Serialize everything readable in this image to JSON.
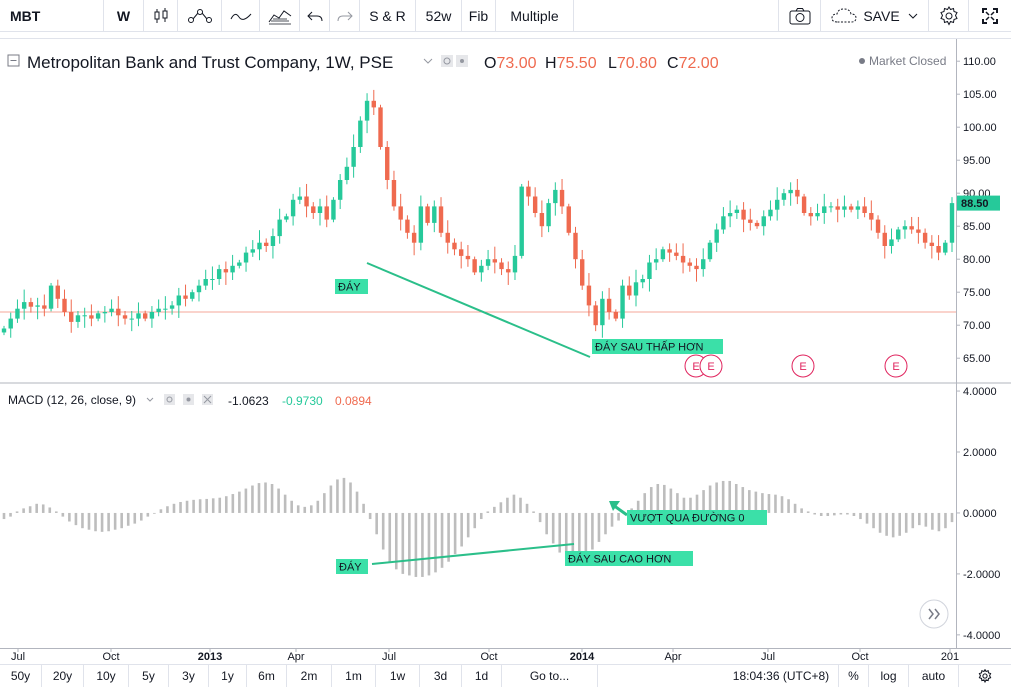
{
  "toolbar": {
    "symbol": "MBT",
    "interval": "W",
    "sr": "S & R",
    "w52": "52w",
    "fib": "Fib",
    "multiple": "Multiple",
    "save": "SAVE"
  },
  "legend": {
    "title": "Metropolitan Bank and Trust Company, 1W, PSE",
    "o_label": "O",
    "o_value": "73.00",
    "h_label": "H",
    "h_value": "75.50",
    "l_label": "L",
    "l_value": "70.80",
    "c_label": "C",
    "c_value": "72.00",
    "market_status": "Market Closed",
    "macd_title": "MACD (12, 26, close, 9)",
    "macd_v1": "-1.0623",
    "macd_v2": "-0.9730",
    "macd_v3": "0.0894"
  },
  "annotations": {
    "price_low1": "ĐÁY",
    "price_low2": "ĐÁY SAU THẤP HƠN",
    "macd_low1": "ĐÁY",
    "macd_low2": "ĐÁY SAU CAO HƠN",
    "macd_cross": "VƯỢT QUA ĐƯỜNG 0",
    "earnings": "E"
  },
  "colors": {
    "up": "#26c99a",
    "down": "#ef6a4f",
    "hist": "#bdbdbd",
    "annotation_bg": "#3be0a8",
    "annotation_line": "#2bbf8a",
    "earnings": "#e0245e"
  },
  "bottom": {
    "ranges": [
      "50y",
      "20y",
      "10y",
      "5y",
      "3y",
      "1y",
      "6m",
      "2m",
      "1m",
      "1w",
      "3d",
      "1d"
    ],
    "goto": "Go to...",
    "time": "18:04:36 (UTC+8)",
    "pct": "%",
    "log": "log",
    "auto": "auto"
  },
  "chart_data": [
    {
      "type": "candlestick",
      "title": "Metropolitan Bank and Trust Company, 1W, PSE",
      "x_tick_labels": [
        "Jul",
        "Oct",
        "2013",
        "Apr",
        "Jul",
        "Oct",
        "2014",
        "Apr",
        "Jul",
        "Oct",
        "201"
      ],
      "y_tick_labels": [
        "65.00",
        "70.00",
        "75.00",
        "80.00",
        "85.00",
        "90.00",
        "95.00",
        "100.00",
        "105.00",
        "110.00"
      ],
      "ylim": [
        62,
        112
      ],
      "last_price": "88.50",
      "reference_level": 72,
      "close_series": [
        69.5,
        71.0,
        72.5,
        73.5,
        72.8,
        73.0,
        72.5,
        76.0,
        74.0,
        72.0,
        70.5,
        71.5,
        71.5,
        71.0,
        71.8,
        72.0,
        72.5,
        71.5,
        71.0,
        71.0,
        71.8,
        71.0,
        72.0,
        72.5,
        72.5,
        73.0,
        74.5,
        74.0,
        75.0,
        76.0,
        77.0,
        77.0,
        78.5,
        78.0,
        79.0,
        79.5,
        81.0,
        81.5,
        82.5,
        82.0,
        83.5,
        86.0,
        86.5,
        89.0,
        89.5,
        88.0,
        87.0,
        88.0,
        86.0,
        89.0,
        92.0,
        94.0,
        97.0,
        101.0,
        104.0,
        103.0,
        97.0,
        92.0,
        88.0,
        86.0,
        84.0,
        82.5,
        88.0,
        85.5,
        88.0,
        84.0,
        82.5,
        81.5,
        80.5,
        80.0,
        78.0,
        79.0,
        80.0,
        79.5,
        78.5,
        78.0,
        80.5,
        91.0,
        89.5,
        87.0,
        85.0,
        88.5,
        90.5,
        88.0,
        84.0,
        80.0,
        76.0,
        73.0,
        70.0,
        74.0,
        72.0,
        71.0,
        76.0,
        74.5,
        76.5,
        77.0,
        79.5,
        80.0,
        81.5,
        81.0,
        80.5,
        79.5,
        79.0,
        78.5,
        80.0,
        82.5,
        84.5,
        86.5,
        87.0,
        87.5,
        86.0,
        85.5,
        85.0,
        86.5,
        87.5,
        89.0,
        90.0,
        90.5,
        89.5,
        87.0,
        86.5,
        87.0,
        88.0,
        88.0,
        87.5,
        88.0,
        87.5,
        88.0,
        87.0,
        86.0,
        84.0,
        82.0,
        83.0,
        84.5,
        85.0,
        84.5,
        84.0,
        82.5,
        82.0,
        81.0,
        82.5,
        88.5
      ]
    },
    {
      "type": "bar",
      "title": "MACD (12, 26, close, 9)",
      "y_tick_labels": [
        "4.0000",
        "2.0000",
        "0.0000",
        "-2.0000",
        "-4.0000"
      ],
      "ylim": [
        -4.3,
        4.1
      ],
      "values": [
        -0.2,
        -0.12,
        0.05,
        0.15,
        0.22,
        0.3,
        0.28,
        0.18,
        0.05,
        -0.12,
        -0.28,
        -0.4,
        -0.5,
        -0.55,
        -0.6,
        -0.62,
        -0.6,
        -0.55,
        -0.5,
        -0.42,
        -0.35,
        -0.25,
        -0.12,
        0.0,
        0.12,
        0.22,
        0.3,
        0.36,
        0.4,
        0.43,
        0.45,
        0.46,
        0.48,
        0.5,
        0.55,
        0.62,
        0.7,
        0.8,
        0.9,
        0.98,
        1.0,
        0.95,
        0.8,
        0.6,
        0.4,
        0.25,
        0.2,
        0.25,
        0.4,
        0.65,
        0.9,
        1.1,
        1.15,
        1.0,
        0.7,
        0.3,
        -0.2,
        -0.7,
        -1.2,
        -1.6,
        -1.85,
        -2.0,
        -2.05,
        -2.1,
        -2.1,
        -2.05,
        -1.95,
        -1.8,
        -1.6,
        -1.35,
        -1.1,
        -0.8,
        -0.5,
        -0.2,
        0.05,
        0.2,
        0.35,
        0.5,
        0.6,
        0.5,
        0.3,
        0.05,
        -0.3,
        -0.7,
        -1.0,
        -1.3,
        -1.5,
        -1.6,
        -1.55,
        -1.4,
        -1.2,
        -0.95,
        -0.7,
        -0.45,
        -0.25,
        -0.05,
        0.15,
        0.4,
        0.65,
        0.85,
        0.95,
        0.92,
        0.8,
        0.65,
        0.5,
        0.5,
        0.6,
        0.75,
        0.9,
        1.0,
        1.05,
        1.05,
        0.95,
        0.85,
        0.75,
        0.7,
        0.65,
        0.62,
        0.6,
        0.55,
        0.45,
        0.3,
        0.15,
        0.05,
        -0.05,
        -0.1,
        -0.1,
        -0.08,
        -0.05,
        -0.05,
        -0.1,
        -0.2,
        -0.35,
        -0.5,
        -0.65,
        -0.75,
        -0.8,
        -0.75,
        -0.65,
        -0.5,
        -0.4,
        -0.45,
        -0.55,
        -0.6,
        -0.5,
        -0.3
      ]
    }
  ]
}
